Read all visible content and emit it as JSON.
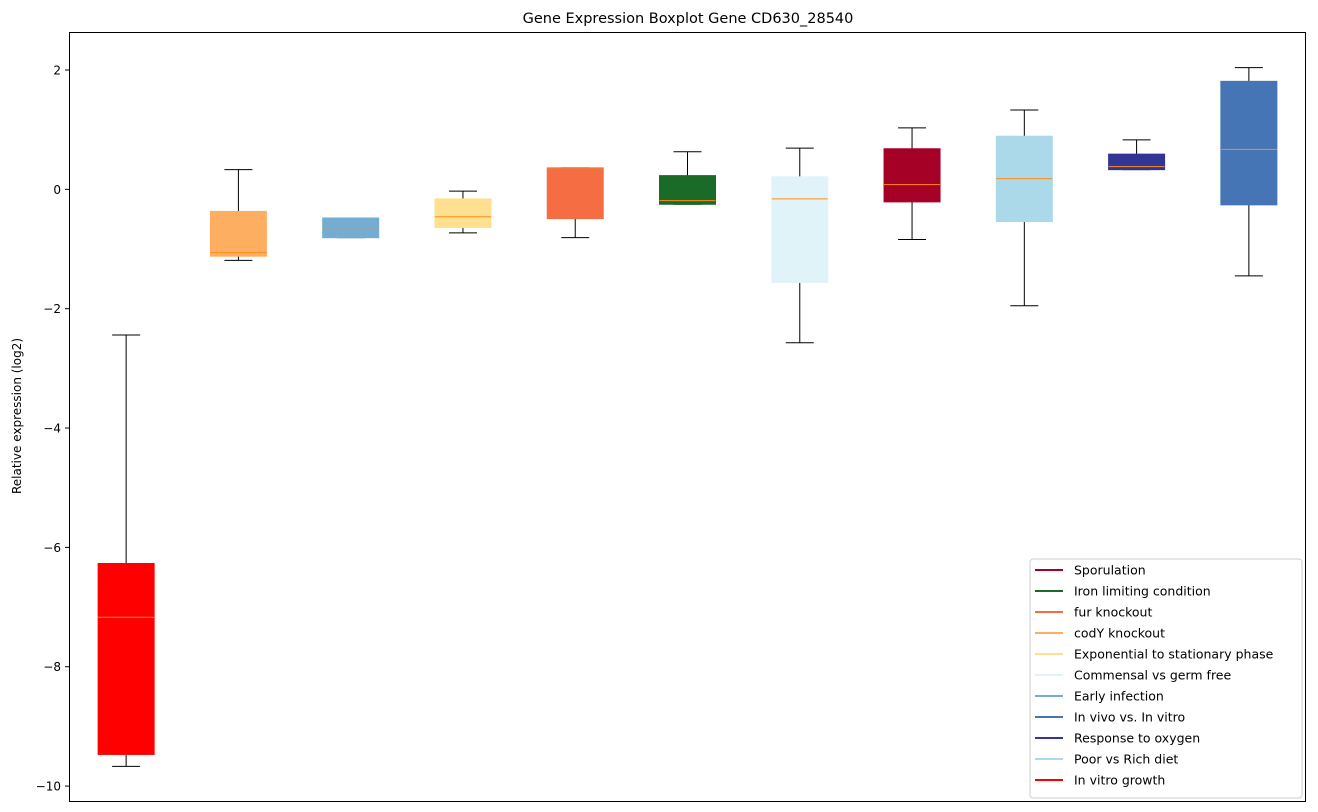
{
  "chart_data": {
    "type": "boxplot",
    "title": "Gene Expression Boxplot Gene CD630_28540",
    "xlabel": "",
    "ylabel": "Relative expression (log2)",
    "ylim": [
      -10.25,
      2.62
    ],
    "yticks": [
      2,
      0,
      -2,
      -4,
      -6,
      -8,
      -10
    ],
    "ytick_labels": [
      "2",
      "0",
      "−2",
      "−4",
      "−6",
      "−8",
      "−10"
    ],
    "legend_location": "lower-right",
    "median_color": "#ff8c1a",
    "series": [
      {
        "name": "In vitro growth",
        "color": "#ff0000",
        "whisker_low": -9.67,
        "q1": -9.47,
        "median": -7.17,
        "q3": -6.27,
        "whisker_high": -2.44
      },
      {
        "name": "codY knockout",
        "color": "#fdae61",
        "whisker_low": -1.19,
        "q1": -1.12,
        "median": -1.06,
        "q3": -0.37,
        "whisker_high": 0.33
      },
      {
        "name": "Early infection",
        "color": "#74add1",
        "whisker_low": -0.81,
        "q1": -0.81,
        "median": -0.67,
        "q3": -0.48,
        "whisker_high": -0.48
      },
      {
        "name": "Exponential to stationary phase",
        "color": "#fee090",
        "whisker_low": -0.73,
        "q1": -0.64,
        "median": -0.46,
        "q3": -0.16,
        "whisker_high": -0.03
      },
      {
        "name": "fur knockout",
        "color": "#f46d43",
        "whisker_low": -0.81,
        "q1": -0.49,
        "median": 0.36,
        "q3": 0.36,
        "whisker_high": 0.36
      },
      {
        "name": "Iron limiting condition",
        "color": "#1a6b27",
        "whisker_low": -0.25,
        "q1": -0.25,
        "median": -0.19,
        "q3": 0.23,
        "whisker_high": 0.63
      },
      {
        "name": "Commensal vs germ free",
        "color": "#e0f3f8",
        "whisker_low": -2.57,
        "q1": -1.56,
        "median": -0.16,
        "q3": 0.21,
        "whisker_high": 0.69
      },
      {
        "name": "Sporulation",
        "color": "#a50026",
        "whisker_low": -0.84,
        "q1": -0.21,
        "median": 0.08,
        "q3": 0.68,
        "whisker_high": 1.03
      },
      {
        "name": "Poor vs Rich diet",
        "color": "#abd9e9",
        "whisker_low": -1.95,
        "q1": -0.54,
        "median": 0.18,
        "q3": 0.89,
        "whisker_high": 1.33
      },
      {
        "name": "Response to oxygen",
        "color": "#313695",
        "whisker_low": 0.33,
        "q1": 0.33,
        "median": 0.38,
        "q3": 0.59,
        "whisker_high": 0.83
      },
      {
        "name": "In vivo vs. In vitro",
        "color": "#4575b4",
        "whisker_low": -1.45,
        "q1": -0.26,
        "median": 0.67,
        "q3": 1.81,
        "whisker_high": 2.04
      }
    ],
    "legend": [
      {
        "label": "Sporulation",
        "color": "#a50026"
      },
      {
        "label": "Iron limiting condition",
        "color": "#1a6b27"
      },
      {
        "label": "fur knockout",
        "color": "#f46d43"
      },
      {
        "label": "codY knockout",
        "color": "#fdae61"
      },
      {
        "label": "Exponential to stationary phase",
        "color": "#fee090"
      },
      {
        "label": "Commensal vs germ free",
        "color": "#e0f3f8"
      },
      {
        "label": "Early infection",
        "color": "#74add1"
      },
      {
        "label": "In vivo vs. In vitro",
        "color": "#4575b4"
      },
      {
        "label": "Response to oxygen",
        "color": "#313695"
      },
      {
        "label": "Poor vs Rich diet",
        "color": "#abd9e9"
      },
      {
        "label": "In vitro growth",
        "color": "#ff0000"
      }
    ]
  }
}
